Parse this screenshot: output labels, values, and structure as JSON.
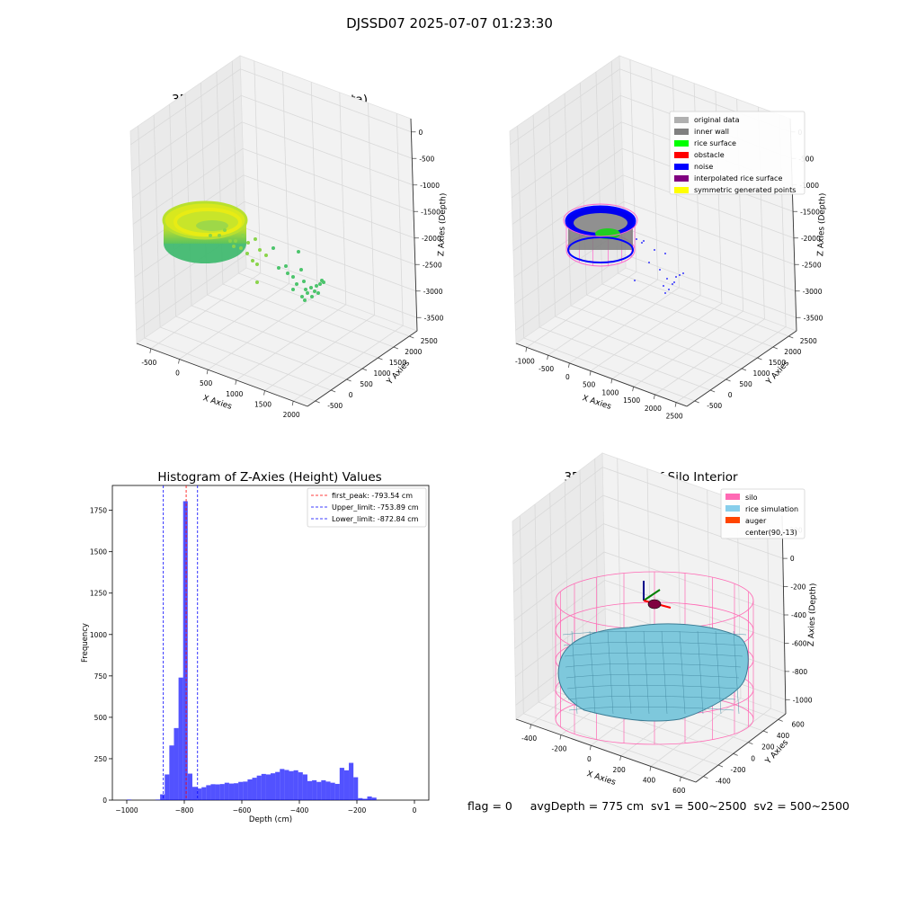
{
  "suptitle": "DJSSD07 2025-07-07 01:23:30",
  "panels": {
    "raw": {
      "title": "3D Plot of Silo Interior(row data)",
      "xlabel": "X Axies",
      "ylabel": "Y Axies",
      "zlabel": "Z Axies (Depth)",
      "xticks": [
        "-500",
        "0",
        "500",
        "1000",
        "1500",
        "2000"
      ],
      "yticks": [
        "-500",
        "0",
        "500",
        "1000",
        "1500",
        "2000",
        "2500"
      ],
      "zticks": [
        "0",
        "-500",
        "-1000",
        "-1500",
        "-2000",
        "-2500",
        "-3000",
        "-3500"
      ]
    },
    "classify": {
      "title": "3D classify of Silo Interior",
      "xlabel": "X Axies",
      "ylabel": "Y Axies",
      "zlabel": "Z Axies (Depth)",
      "xticks": [
        "-1000",
        "-500",
        "0",
        "500",
        "1000",
        "1500",
        "2000",
        "2500"
      ],
      "yticks": [
        "-500",
        "0",
        "500",
        "1000",
        "1500",
        "2000",
        "2500"
      ],
      "zticks": [
        "0",
        "-500",
        "-1000",
        "-1500",
        "-2000",
        "-2500",
        "-3000",
        "-3500"
      ],
      "legend": [
        {
          "label": "original data",
          "color": "#b0b0b0"
        },
        {
          "label": "inner wall",
          "color": "#808080"
        },
        {
          "label": "rice surface",
          "color": "#00ff00"
        },
        {
          "label": "obstacle",
          "color": "#ff0000"
        },
        {
          "label": "noise",
          "color": "#0000ff"
        },
        {
          "label": "interpolated rice surface",
          "color": "#800080"
        },
        {
          "label": "symmetric generated points",
          "color": "#ffff00"
        }
      ]
    },
    "simulation": {
      "title": "3D simulation of Silo Interior",
      "xlabel": "X Axies",
      "ylabel": "Y Axies",
      "zlabel": "Z Axies (Depth)",
      "xticks": [
        "-400",
        "-200",
        "0",
        "200",
        "400",
        "600"
      ],
      "yticks": [
        "-400",
        "-200",
        "0",
        "200",
        "400",
        "600"
      ],
      "zticks": [
        "200",
        "0",
        "-200",
        "-400",
        "-600",
        "-800",
        "-1000"
      ],
      "legend": [
        {
          "label": "silo",
          "color": "#ff69b4"
        },
        {
          "label": "rice simulation",
          "color": "#87ceeb"
        },
        {
          "label": "auger",
          "color": "#ff4500"
        },
        {
          "label": "center(90,-13)",
          "color": "none"
        }
      ]
    }
  },
  "chart_data": [
    {
      "type": "bar",
      "title": "Histogram of Z-Axies (Height) Values",
      "xlabel": "Depth (cm)",
      "ylabel": "Frequency",
      "xlim": [
        -1050,
        50
      ],
      "ylim": [
        0,
        1900
      ],
      "xticks": [
        -1000,
        -800,
        -600,
        -400,
        -200,
        0
      ],
      "yticks": [
        0,
        250,
        500,
        750,
        1000,
        1250,
        1500,
        1750
      ],
      "bar_color": "#0000ff",
      "bin_width": 16,
      "bins": [
        {
          "x": -1000,
          "value": 3
        },
        {
          "x": -900,
          "value": 3
        },
        {
          "x": -884,
          "value": 35
        },
        {
          "x": -868,
          "value": 155
        },
        {
          "x": -852,
          "value": 330
        },
        {
          "x": -836,
          "value": 435
        },
        {
          "x": -820,
          "value": 740
        },
        {
          "x": -804,
          "value": 1805
        },
        {
          "x": -788,
          "value": 160
        },
        {
          "x": -772,
          "value": 80
        },
        {
          "x": -756,
          "value": 70
        },
        {
          "x": -740,
          "value": 78
        },
        {
          "x": -724,
          "value": 90
        },
        {
          "x": -708,
          "value": 96
        },
        {
          "x": -692,
          "value": 95
        },
        {
          "x": -676,
          "value": 97
        },
        {
          "x": -660,
          "value": 105
        },
        {
          "x": -644,
          "value": 100
        },
        {
          "x": -628,
          "value": 102
        },
        {
          "x": -612,
          "value": 110
        },
        {
          "x": -596,
          "value": 112
        },
        {
          "x": -580,
          "value": 125
        },
        {
          "x": -564,
          "value": 135
        },
        {
          "x": -548,
          "value": 148
        },
        {
          "x": -532,
          "value": 158
        },
        {
          "x": -516,
          "value": 155
        },
        {
          "x": -500,
          "value": 162
        },
        {
          "x": -484,
          "value": 170
        },
        {
          "x": -468,
          "value": 188
        },
        {
          "x": -452,
          "value": 182
        },
        {
          "x": -436,
          "value": 175
        },
        {
          "x": -420,
          "value": 180
        },
        {
          "x": -404,
          "value": 168
        },
        {
          "x": -388,
          "value": 155
        },
        {
          "x": -372,
          "value": 115
        },
        {
          "x": -356,
          "value": 120
        },
        {
          "x": -340,
          "value": 110
        },
        {
          "x": -324,
          "value": 120
        },
        {
          "x": -308,
          "value": 112
        },
        {
          "x": -292,
          "value": 105
        },
        {
          "x": -276,
          "value": 98
        },
        {
          "x": -260,
          "value": 195
        },
        {
          "x": -244,
          "value": 180
        },
        {
          "x": -228,
          "value": 225
        },
        {
          "x": -212,
          "value": 138
        },
        {
          "x": -196,
          "value": 12
        },
        {
          "x": -180,
          "value": 8
        },
        {
          "x": -164,
          "value": 22
        },
        {
          "x": -148,
          "value": 15
        }
      ],
      "vlines": [
        {
          "label": "first_peak: -793.54 cm",
          "x": -793.54,
          "color": "#ff0000"
        },
        {
          "label": "Upper_limit: -753.89 cm",
          "x": -753.89,
          "color": "#0000ff"
        },
        {
          "label": "Lower_limit: -872.84 cm",
          "x": -872.84,
          "color": "#0000ff"
        }
      ]
    }
  ],
  "footer": {
    "flag": "flag = 0",
    "avg": "avgDepth = 775 cm",
    "sv1": "sv1 = 500~2500",
    "sv2": "sv2 = 500~2500"
  }
}
